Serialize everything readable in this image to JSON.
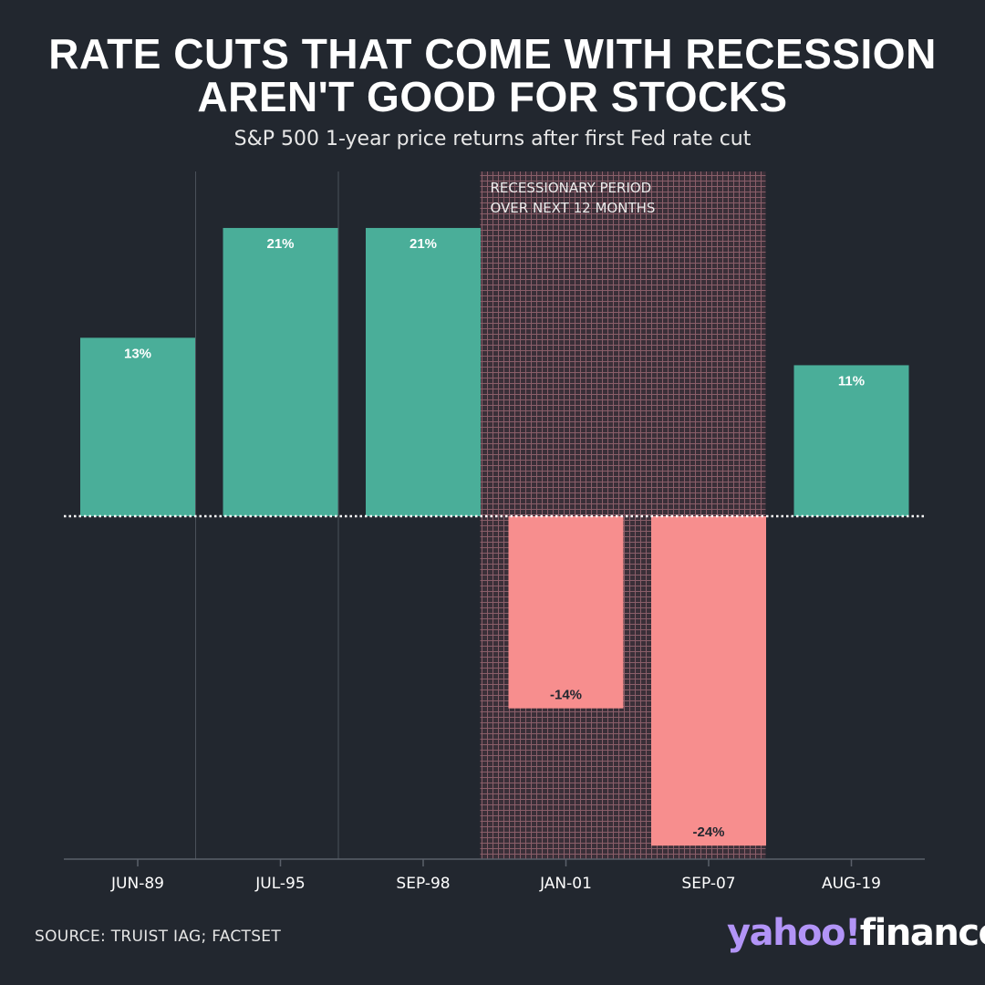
{
  "title_lines": [
    "RATE CUTS THAT COME WITH RECESSION",
    "AREN'T GOOD FOR STOCKS"
  ],
  "subtitle": "S&P 500 1-year price returns after first Fed rate cut",
  "source": "SOURCE: TRUIST IAG; FACTSET",
  "logo": {
    "yahoo": "yahoo",
    "bang": "!",
    "finance": "finance"
  },
  "annotation": [
    "RECESSIONARY PERIOD",
    "OVER NEXT 12 MONTHS"
  ],
  "colors": {
    "background": "#22272f",
    "positive": "#4aae99",
    "negative": "#f78e8e",
    "recession_hatch": "#8a5e69",
    "logo_yahoo": "#b294f7"
  },
  "chart_data": {
    "type": "bar",
    "categories": [
      "JUN-89",
      "JUL-95",
      "SEP-98",
      "JAN-01",
      "SEP-07",
      "AUG-19"
    ],
    "values": [
      13,
      21,
      21,
      -14,
      -24,
      11
    ],
    "value_labels": [
      "13%",
      "21%",
      "21%",
      "-14%",
      "-24%",
      "11%"
    ],
    "recession_categories": [
      "JAN-01",
      "SEP-07"
    ],
    "ylim": [
      -25,
      27
    ],
    "baseline": 0,
    "grid": false
  }
}
